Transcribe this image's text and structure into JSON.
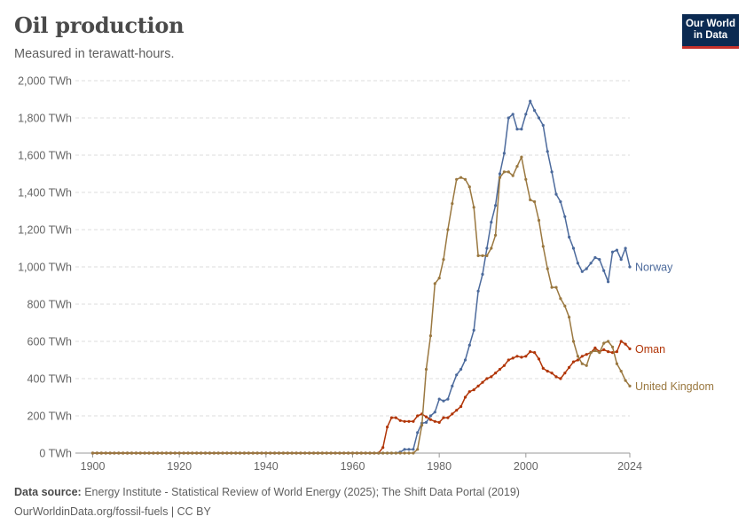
{
  "header": {
    "title": "Oil production",
    "subtitle": "Measured in terawatt-hours.",
    "logo_line1": "Our World",
    "logo_line2": "in Data"
  },
  "footer": {
    "source_label": "Data source:",
    "source_text": "Energy Institute - Statistical Review of World Energy (2025); The Shift Data Portal (2019)",
    "link_text": "OurWorldinData.org/fossil-fuels | CC BY"
  },
  "colors": {
    "Norway": "#4c6a9c",
    "Oman": "#b13507",
    "United Kingdom": "#9a7840",
    "grid": "#dddddd"
  },
  "chart_data": {
    "type": "line",
    "title": "Oil production",
    "subtitle": "Measured in terawatt-hours.",
    "unit": "TWh",
    "xlim": [
      1900,
      2024
    ],
    "ylim": [
      0,
      2000
    ],
    "x_ticks": [
      "1900",
      "1920",
      "1940",
      "1960",
      "1980",
      "2000",
      "2024"
    ],
    "y_ticks": [
      "0 TWh",
      "200 TWh",
      "400 TWh",
      "600 TWh",
      "800 TWh",
      "1,000 TWh",
      "1,200 TWh",
      "1,400 TWh",
      "1,600 TWh",
      "1,800 TWh",
      "2,000 TWh"
    ],
    "grid": true,
    "legend": "inline-right",
    "series": [
      {
        "name": "Norway",
        "points": [
          [
            1900,
            0
          ],
          [
            1966,
            0
          ],
          [
            1967,
            0
          ],
          [
            1968,
            0
          ],
          [
            1969,
            0
          ],
          [
            1970,
            0
          ],
          [
            1971,
            5
          ],
          [
            1972,
            20
          ],
          [
            1973,
            20
          ],
          [
            1974,
            20
          ],
          [
            1975,
            110
          ],
          [
            1976,
            160
          ],
          [
            1977,
            165
          ],
          [
            1978,
            200
          ],
          [
            1979,
            220
          ],
          [
            1980,
            290
          ],
          [
            1981,
            280
          ],
          [
            1982,
            290
          ],
          [
            1983,
            360
          ],
          [
            1984,
            420
          ],
          [
            1985,
            450
          ],
          [
            1986,
            500
          ],
          [
            1987,
            580
          ],
          [
            1988,
            660
          ],
          [
            1989,
            870
          ],
          [
            1990,
            960
          ],
          [
            1991,
            1100
          ],
          [
            1992,
            1240
          ],
          [
            1993,
            1330
          ],
          [
            1994,
            1500
          ],
          [
            1995,
            1610
          ],
          [
            1996,
            1800
          ],
          [
            1997,
            1820
          ],
          [
            1998,
            1740
          ],
          [
            1999,
            1740
          ],
          [
            2000,
            1820
          ],
          [
            2001,
            1890
          ],
          [
            2002,
            1840
          ],
          [
            2003,
            1800
          ],
          [
            2004,
            1760
          ],
          [
            2005,
            1620
          ],
          [
            2006,
            1510
          ],
          [
            2007,
            1390
          ],
          [
            2008,
            1350
          ],
          [
            2009,
            1270
          ],
          [
            2010,
            1160
          ],
          [
            2011,
            1100
          ],
          [
            2012,
            1020
          ],
          [
            2013,
            975
          ],
          [
            2014,
            990
          ],
          [
            2015,
            1020
          ],
          [
            2016,
            1050
          ],
          [
            2017,
            1040
          ],
          [
            2018,
            980
          ],
          [
            2019,
            920
          ],
          [
            2020,
            1080
          ],
          [
            2021,
            1090
          ],
          [
            2022,
            1040
          ],
          [
            2023,
            1100
          ],
          [
            2024,
            1000
          ]
        ]
      },
      {
        "name": "Oman",
        "points": [
          [
            1900,
            0
          ],
          [
            1966,
            0
          ],
          [
            1967,
            30
          ],
          [
            1968,
            140
          ],
          [
            1969,
            190
          ],
          [
            1970,
            190
          ],
          [
            1971,
            175
          ],
          [
            1972,
            170
          ],
          [
            1973,
            170
          ],
          [
            1974,
            170
          ],
          [
            1975,
            200
          ],
          [
            1976,
            210
          ],
          [
            1977,
            195
          ],
          [
            1978,
            180
          ],
          [
            1979,
            170
          ],
          [
            1980,
            165
          ],
          [
            1981,
            190
          ],
          [
            1982,
            190
          ],
          [
            1983,
            210
          ],
          [
            1984,
            230
          ],
          [
            1985,
            250
          ],
          [
            1986,
            300
          ],
          [
            1987,
            330
          ],
          [
            1988,
            340
          ],
          [
            1989,
            360
          ],
          [
            1990,
            380
          ],
          [
            1991,
            400
          ],
          [
            1992,
            410
          ],
          [
            1993,
            430
          ],
          [
            1994,
            450
          ],
          [
            1995,
            470
          ],
          [
            1996,
            500
          ],
          [
            1997,
            510
          ],
          [
            1998,
            520
          ],
          [
            1999,
            515
          ],
          [
            2000,
            520
          ],
          [
            2001,
            545
          ],
          [
            2002,
            540
          ],
          [
            2003,
            505
          ],
          [
            2004,
            455
          ],
          [
            2005,
            440
          ],
          [
            2006,
            430
          ],
          [
            2007,
            410
          ],
          [
            2008,
            400
          ],
          [
            2009,
            430
          ],
          [
            2010,
            460
          ],
          [
            2011,
            490
          ],
          [
            2012,
            500
          ],
          [
            2013,
            520
          ],
          [
            2014,
            530
          ],
          [
            2015,
            540
          ],
          [
            2016,
            565
          ],
          [
            2017,
            545
          ],
          [
            2018,
            555
          ],
          [
            2019,
            545
          ],
          [
            2020,
            540
          ],
          [
            2021,
            545
          ],
          [
            2022,
            600
          ],
          [
            2023,
            585
          ],
          [
            2024,
            560
          ]
        ]
      },
      {
        "name": "United Kingdom",
        "points": [
          [
            1900,
            0
          ],
          [
            1974,
            0
          ],
          [
            1975,
            20
          ],
          [
            1976,
            150
          ],
          [
            1977,
            450
          ],
          [
            1978,
            630
          ],
          [
            1979,
            910
          ],
          [
            1980,
            940
          ],
          [
            1981,
            1040
          ],
          [
            1982,
            1200
          ],
          [
            1983,
            1340
          ],
          [
            1984,
            1470
          ],
          [
            1985,
            1480
          ],
          [
            1986,
            1470
          ],
          [
            1987,
            1430
          ],
          [
            1988,
            1320
          ],
          [
            1989,
            1060
          ],
          [
            1990,
            1060
          ],
          [
            1991,
            1060
          ],
          [
            1992,
            1100
          ],
          [
            1993,
            1170
          ],
          [
            1994,
            1480
          ],
          [
            1995,
            1510
          ],
          [
            1996,
            1510
          ],
          [
            1997,
            1490
          ],
          [
            1998,
            1540
          ],
          [
            1999,
            1590
          ],
          [
            2000,
            1470
          ],
          [
            2001,
            1360
          ],
          [
            2002,
            1350
          ],
          [
            2003,
            1250
          ],
          [
            2004,
            1110
          ],
          [
            2005,
            990
          ],
          [
            2006,
            890
          ],
          [
            2007,
            890
          ],
          [
            2008,
            830
          ],
          [
            2009,
            790
          ],
          [
            2010,
            730
          ],
          [
            2011,
            600
          ],
          [
            2012,
            520
          ],
          [
            2013,
            480
          ],
          [
            2014,
            470
          ],
          [
            2015,
            540
          ],
          [
            2016,
            550
          ],
          [
            2017,
            540
          ],
          [
            2018,
            590
          ],
          [
            2019,
            600
          ],
          [
            2020,
            570
          ],
          [
            2021,
            480
          ],
          [
            2022,
            440
          ],
          [
            2023,
            390
          ],
          [
            2024,
            360
          ]
        ]
      }
    ]
  }
}
